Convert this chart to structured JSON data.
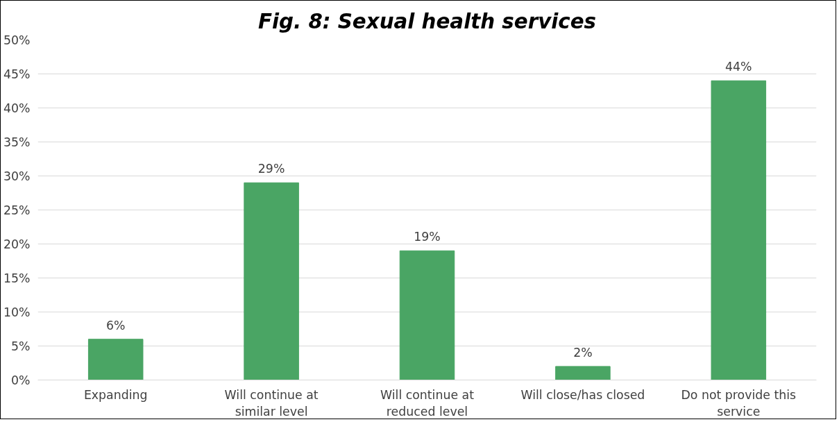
{
  "chart_data": {
    "type": "bar",
    "title": "Fig. 8: Sexual health services",
    "categories": [
      "Expanding",
      "Will continue at similar level",
      "Will continue at reduced level",
      "Will close/has closed",
      "Do not provide this service"
    ],
    "values": [
      6,
      29,
      19,
      2,
      44
    ],
    "color": "#4aa564",
    "value_labels": [
      "6%",
      "29%",
      "19%",
      "2%",
      "44%"
    ],
    "ylim": [
      0,
      50
    ],
    "yticks": [
      {
        "value": 0,
        "label": "0%"
      },
      {
        "value": 5,
        "label": "5%"
      },
      {
        "value": 10,
        "label": "10%"
      },
      {
        "value": 15,
        "label": "15%"
      },
      {
        "value": 20,
        "label": "20%"
      },
      {
        "value": 25,
        "label": "25%"
      },
      {
        "value": 30,
        "label": "30%"
      },
      {
        "value": 35,
        "label": "35%"
      },
      {
        "value": 40,
        "label": "40%"
      },
      {
        "value": 45,
        "label": "45%"
      },
      {
        "value": 50,
        "label": "50%"
      }
    ],
    "grid": "y"
  }
}
